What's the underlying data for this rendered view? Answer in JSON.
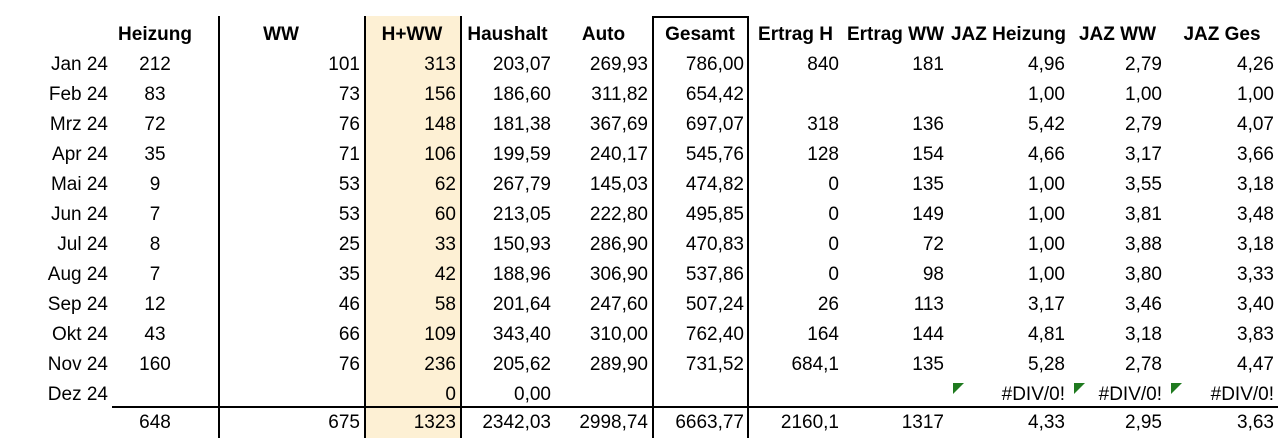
{
  "headers": [
    "",
    "Heizung",
    "WW",
    "H+WW",
    "Haushalt",
    "Auto",
    "Gesamt",
    "Ertrag H",
    "Ertrag WW",
    "JAZ Heizung",
    "JAZ WW",
    "JAZ Ges"
  ],
  "rows": [
    [
      "Jan 24",
      "212",
      "101",
      "313",
      "203,07",
      "269,93",
      "786,00",
      "840",
      "181",
      "4,96",
      "2,79",
      "4,26"
    ],
    [
      "Feb 24",
      "83",
      "73",
      "156",
      "186,60",
      "311,82",
      "654,42",
      "",
      "",
      "1,00",
      "1,00",
      "1,00"
    ],
    [
      "Mrz 24",
      "72",
      "76",
      "148",
      "181,38",
      "367,69",
      "697,07",
      "318",
      "136",
      "5,42",
      "2,79",
      "4,07"
    ],
    [
      "Apr 24",
      "35",
      "71",
      "106",
      "199,59",
      "240,17",
      "545,76",
      "128",
      "154",
      "4,66",
      "3,17",
      "3,66"
    ],
    [
      "Mai 24",
      "9",
      "53",
      "62",
      "267,79",
      "145,03",
      "474,82",
      "0",
      "135",
      "1,00",
      "3,55",
      "3,18"
    ],
    [
      "Jun 24",
      "7",
      "53",
      "60",
      "213,05",
      "222,80",
      "495,85",
      "0",
      "149",
      "1,00",
      "3,81",
      "3,48"
    ],
    [
      "Jul 24",
      "8",
      "25",
      "33",
      "150,93",
      "286,90",
      "470,83",
      "0",
      "72",
      "1,00",
      "3,88",
      "3,18"
    ],
    [
      "Aug 24",
      "7",
      "35",
      "42",
      "188,96",
      "306,90",
      "537,86",
      "0",
      "98",
      "1,00",
      "3,80",
      "3,33"
    ],
    [
      "Sep 24",
      "12",
      "46",
      "58",
      "201,64",
      "247,60",
      "507,24",
      "26",
      "113",
      "3,17",
      "3,46",
      "3,40"
    ],
    [
      "Okt 24",
      "43",
      "66",
      "109",
      "343,40",
      "310,00",
      "762,40",
      "164",
      "144",
      "4,81",
      "3,18",
      "3,83"
    ],
    [
      "Nov 24",
      "160",
      "76",
      "236",
      "205,62",
      "289,90",
      "731,52",
      "684,1",
      "135",
      "5,28",
      "2,78",
      "4,47"
    ],
    [
      "Dez 24",
      "",
      "",
      "0",
      "0,00",
      "",
      "",
      "",
      "",
      "#DIV/0!",
      "#DIV/0!",
      "#DIV/0!"
    ]
  ],
  "totals": [
    "",
    "648",
    "675",
    "1323",
    "2342,03",
    "2998,74",
    "6663,77",
    "2160,1",
    "1317",
    "4,33",
    "2,95",
    "3,63"
  ],
  "colors": {
    "highlight": "#fdf0d4",
    "error_marker": "#1f7a1f"
  }
}
